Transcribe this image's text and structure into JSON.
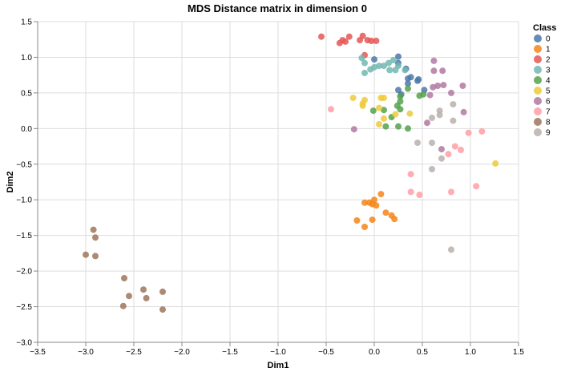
{
  "chart_data": {
    "type": "scatter",
    "title": "MDS Distance matrix in dimension 0",
    "xlabel": "Dim1",
    "ylabel": "Dim2",
    "xlim": [
      -3.5,
      1.5
    ],
    "ylim": [
      -3.0,
      1.5
    ],
    "xticks": [
      "−3.5",
      "−3.0",
      "−2.5",
      "−2.0",
      "−1.5",
      "−1.0",
      "−0.5",
      "0.0",
      "0.5",
      "1.0",
      "1.5"
    ],
    "yticks": [
      "1.5",
      "1.0",
      "0.5",
      "0.0",
      "−0.5",
      "−1.0",
      "−1.5",
      "−2.0",
      "−2.5",
      "−3.0"
    ],
    "grid": true,
    "legend": {
      "title": "Class",
      "position": "right"
    },
    "series": [
      {
        "name": "0",
        "color": "#4c78a8",
        "points": [
          [
            0,
            0.97
          ],
          [
            0.25,
            1.01
          ],
          [
            0.25,
            0.92
          ],
          [
            0.33,
            0.84
          ],
          [
            0.35,
            0.7
          ],
          [
            0.38,
            0.72
          ],
          [
            0.45,
            0.67
          ],
          [
            0.46,
            0.69
          ],
          [
            0.35,
            0.63
          ],
          [
            0.25,
            0.54
          ],
          [
            0.28,
            0.48
          ],
          [
            0.52,
            0.54
          ]
        ]
      },
      {
        "name": "1",
        "color": "#f58518",
        "points": [
          [
            -0.1,
            -1.04
          ],
          [
            -0.05,
            -1.04
          ],
          [
            0.0,
            -1.0
          ],
          [
            -0.02,
            -1.06
          ],
          [
            0.02,
            -1.08
          ],
          [
            0.07,
            -0.92
          ],
          [
            0.12,
            -1.18
          ],
          [
            0.18,
            -1.22
          ],
          [
            0.21,
            -1.27
          ],
          [
            -0.18,
            -1.29
          ],
          [
            -0.1,
            -1.38
          ],
          [
            -0.02,
            -1.28
          ]
        ]
      },
      {
        "name": "2",
        "color": "#e45756",
        "points": [
          [
            -0.55,
            1.29
          ],
          [
            -0.36,
            1.2
          ],
          [
            -0.33,
            1.24
          ],
          [
            -0.3,
            1.22
          ],
          [
            -0.26,
            1.29
          ],
          [
            -0.15,
            1.24
          ],
          [
            -0.12,
            1.3
          ],
          [
            -0.07,
            1.24
          ],
          [
            -0.03,
            1.23
          ],
          [
            0.02,
            1.23
          ],
          [
            -0.1,
            1.03
          ]
        ]
      },
      {
        "name": "3",
        "color": "#72b7b2",
        "points": [
          [
            -0.13,
            0.99
          ],
          [
            -0.1,
            0.92
          ],
          [
            -0.04,
            0.83
          ],
          [
            0.0,
            0.86
          ],
          [
            0.05,
            0.88
          ],
          [
            0.1,
            0.88
          ],
          [
            0.15,
            0.92
          ],
          [
            0.2,
            0.96
          ],
          [
            0.25,
            0.88
          ],
          [
            0.32,
            0.82
          ],
          [
            -0.1,
            0.78
          ],
          [
            0.16,
            0.82
          ],
          [
            0.22,
            0.82
          ]
        ]
      },
      {
        "name": "4",
        "color": "#54a24b",
        "points": [
          [
            -0.01,
            0.25
          ],
          [
            0.1,
            0.26
          ],
          [
            0.18,
            0.16
          ],
          [
            0.24,
            0.32
          ],
          [
            0.27,
            0.27
          ],
          [
            0.27,
            0.45
          ],
          [
            0.27,
            0.38
          ],
          [
            0.35,
            0.56
          ],
          [
            0.47,
            0.46
          ],
          [
            0.51,
            0.48
          ],
          [
            0.12,
            0.03
          ],
          [
            0.25,
            0.03
          ],
          [
            0.35,
            0.0
          ]
        ]
      },
      {
        "name": "5",
        "color": "#eeca3b",
        "points": [
          [
            -0.22,
            0.43
          ],
          [
            -0.12,
            0.32
          ],
          [
            -0.1,
            0.4
          ],
          [
            -0.12,
            0.35
          ],
          [
            0.05,
            0.29
          ],
          [
            0.07,
            0.43
          ],
          [
            0.1,
            0.43
          ],
          [
            0.1,
            0.14
          ],
          [
            0.05,
            0.06
          ],
          [
            0.22,
            0.2
          ],
          [
            0.37,
            0.21
          ],
          [
            1.26,
            -0.49
          ]
        ]
      },
      {
        "name": "6",
        "color": "#b279a2",
        "points": [
          [
            0.62,
            0.95
          ],
          [
            0.62,
            0.81
          ],
          [
            0.71,
            0.81
          ],
          [
            0.61,
            0.58
          ],
          [
            0.66,
            0.6
          ],
          [
            0.72,
            0.61
          ],
          [
            0.8,
            0.5
          ],
          [
            0.92,
            0.6
          ],
          [
            0.58,
            0.47
          ],
          [
            0.93,
            0.23
          ],
          [
            0.7,
            -0.29
          ],
          [
            0.55,
            0.08
          ],
          [
            -0.21,
            -0.01
          ]
        ]
      },
      {
        "name": "7",
        "color": "#ff9da6",
        "points": [
          [
            -0.45,
            0.27
          ],
          [
            0.98,
            -0.06
          ],
          [
            1.12,
            -0.04
          ],
          [
            0.84,
            -0.25
          ],
          [
            0.9,
            -0.3
          ],
          [
            0.77,
            -0.36
          ],
          [
            0.38,
            -0.64
          ],
          [
            0.38,
            -0.89
          ],
          [
            0.47,
            -0.93
          ],
          [
            0.8,
            -0.89
          ],
          [
            1.06,
            -0.81
          ]
        ]
      },
      {
        "name": "8",
        "color": "#9d755d",
        "points": [
          [
            -2.92,
            -1.42
          ],
          [
            -2.9,
            -1.53
          ],
          [
            -3.0,
            -1.77
          ],
          [
            -2.9,
            -1.79
          ],
          [
            -2.6,
            -2.1
          ],
          [
            -2.4,
            -2.26
          ],
          [
            -2.2,
            -2.29
          ],
          [
            -2.55,
            -2.35
          ],
          [
            -2.37,
            -2.38
          ],
          [
            -2.61,
            -2.49
          ],
          [
            -2.2,
            -2.54
          ]
        ]
      },
      {
        "name": "9",
        "color": "#bab0ac",
        "points": [
          [
            0.45,
            -0.2
          ],
          [
            0.6,
            0.15
          ],
          [
            0.68,
            0.19
          ],
          [
            0.68,
            0.25
          ],
          [
            0.82,
            0.34
          ],
          [
            0.82,
            0.11
          ],
          [
            0.6,
            -0.2
          ],
          [
            0.7,
            -0.42
          ],
          [
            0.6,
            -0.57
          ],
          [
            0.8,
            -1.7
          ]
        ]
      }
    ]
  }
}
